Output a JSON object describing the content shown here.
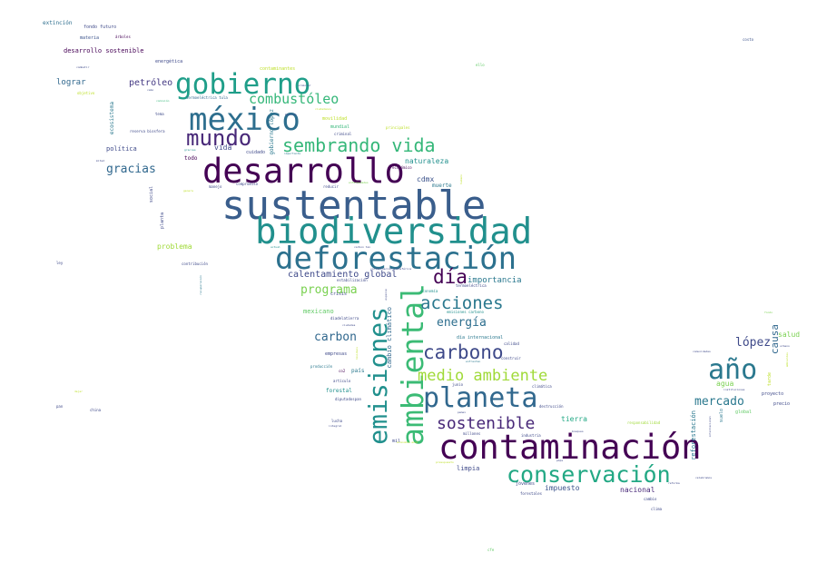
{
  "words": [
    {
      "text": "sustentable",
      "color": "#3a5e8c"
    },
    {
      "text": "biodiversidad",
      "color": "#21908d"
    },
    {
      "text": "contaminación",
      "color": "#440154"
    },
    {
      "text": "deforestación",
      "color": "#2c718e"
    },
    {
      "text": "desarrollo",
      "color": "#440154"
    },
    {
      "text": "ambiental",
      "color": "#3bbb75"
    },
    {
      "text": "méxico",
      "color": "#2d6e8e"
    },
    {
      "text": "emisiones",
      "color": "#21908d"
    },
    {
      "text": "planeta",
      "color": "#31688e"
    },
    {
      "text": "gobierno",
      "color": "#1f9e89"
    },
    {
      "text": "conservación",
      "color": "#22a884"
    },
    {
      "text": "año",
      "color": "#2a788e"
    },
    {
      "text": "mundo",
      "color": "#482878"
    },
    {
      "text": "sembrando vida",
      "color": "#35b779"
    },
    {
      "text": "carbono",
      "color": "#3e4989"
    },
    {
      "text": "acciones",
      "color": "#2a788e"
    },
    {
      "text": "medio ambiente",
      "color": "#a0da39"
    },
    {
      "text": "sostenible",
      "color": "#482878"
    },
    {
      "text": "día",
      "color": "#440154"
    },
    {
      "text": "combustóleo",
      "color": "#35b779"
    },
    {
      "text": "programa",
      "color": "#7ad151"
    },
    {
      "text": "mercado",
      "color": "#2a788e"
    },
    {
      "text": "gracias",
      "color": "#31688e"
    },
    {
      "text": "energía",
      "color": "#2d6e8e"
    },
    {
      "text": "carbon",
      "color": "#31688e"
    },
    {
      "text": "lópez",
      "color": "#3e4989"
    },
    {
      "text": "calentamiento global",
      "color": "#3e4989"
    },
    {
      "text": "causa",
      "color": "#31688e"
    },
    {
      "text": "petróleo",
      "color": "#443983"
    },
    {
      "text": "lograr",
      "color": "#31688e"
    },
    {
      "text": "vida",
      "color": "#3e4989"
    },
    {
      "text": "importancia",
      "color": "#2a788e"
    },
    {
      "text": "tierra",
      "color": "#22a884"
    },
    {
      "text": "nacional",
      "color": "#482878"
    },
    {
      "text": "impuesto",
      "color": "#3b528b"
    },
    {
      "text": "naturaleza",
      "color": "#21908d"
    },
    {
      "text": "cdmx",
      "color": "#3b528b"
    },
    {
      "text": "agua",
      "color": "#7ad151"
    },
    {
      "text": "salud",
      "color": "#7ad151"
    },
    {
      "text": "limpia",
      "color": "#3e4989"
    },
    {
      "text": "mexicano",
      "color": "#5ec962"
    },
    {
      "text": "problema",
      "color": "#a0da39"
    },
    {
      "text": "política",
      "color": "#3e4989"
    },
    {
      "text": "reforestación",
      "color": "#2a788e"
    },
    {
      "text": "desarrollo sostenible",
      "color": "#440154"
    },
    {
      "text": "emisiones carbono",
      "color": "#21908d"
    },
    {
      "text": "ecosistema",
      "color": "#2a788e"
    },
    {
      "text": "gobierno lópez",
      "color": "#2a788e"
    },
    {
      "text": "cambio climático",
      "color": "#31688e"
    },
    {
      "text": "extinción",
      "color": "#2d6e8e"
    },
    {
      "text": "fondo futuro",
      "color": "#3e4989"
    },
    {
      "text": "árboles",
      "color": "#440154"
    },
    {
      "text": "materia",
      "color": "#3b528b"
    },
    {
      "text": "energética",
      "color": "#3e4989"
    },
    {
      "text": "contaminantes",
      "color": "#bddf26"
    },
    {
      "text": "objetivo",
      "color": "#bddf26"
    },
    {
      "text": "termoeléctrica tula",
      "color": "#31688e"
    },
    {
      "text": "promover",
      "color": "#3e4989"
    },
    {
      "text": "cabo",
      "color": "#3e4989"
    },
    {
      "text": "comisión",
      "color": "#35b779"
    },
    {
      "text": "movilidad",
      "color": "#bddf26"
    },
    {
      "text": "mundial",
      "color": "#35b779"
    },
    {
      "text": "criminal",
      "color": "#3e4989"
    },
    {
      "text": "principales",
      "color": "#bddf26"
    },
    {
      "text": "ello",
      "color": "#5ec962"
    },
    {
      "text": "costo",
      "color": "#3b528b"
    },
    {
      "text": "cuidado",
      "color": "#3e4989"
    },
    {
      "text": "todo",
      "color": "#440154"
    },
    {
      "text": "económico",
      "color": "#440154"
    },
    {
      "text": "reducir",
      "color": "#3e4989"
    },
    {
      "text": "compromiso",
      "color": "#3e4989"
    },
    {
      "text": "manejo",
      "color": "#3e4989"
    },
    {
      "text": "muerte",
      "color": "#2a788e"
    },
    {
      "text": "enfermedades",
      "color": "#7ad151"
    },
    {
      "text": "social",
      "color": "#3e4989"
    },
    {
      "text": "planta",
      "color": "#3e4989"
    },
    {
      "text": "ley",
      "color": "#3e4989"
    },
    {
      "text": "contribución",
      "color": "#3e4989"
    },
    {
      "text": "recuperación",
      "color": "#2a788e"
    },
    {
      "text": "crisis",
      "color": "#3e4989"
    },
    {
      "text": "especie",
      "color": "#3e4989"
    },
    {
      "text": "economía",
      "color": "#21908d"
    },
    {
      "text": "termoeléctrica",
      "color": "#3e4989"
    },
    {
      "text": "estabilización",
      "color": "#3e4989"
    },
    {
      "text": "contaminación atmosférica",
      "color": "#3e4989"
    },
    {
      "text": "carbon tax",
      "color": "#3e4989"
    },
    {
      "text": "actual",
      "color": "#21908d"
    },
    {
      "text": "diadelatierra",
      "color": "#3e4989"
    },
    {
      "text": "ciudades",
      "color": "#3e4989"
    },
    {
      "text": "día internacional",
      "color": "#2a788e"
    },
    {
      "text": "calidad",
      "color": "#3e4989"
    },
    {
      "text": "construir",
      "color": "#3e4989"
    },
    {
      "text": "empresas",
      "color": "#3e4989"
    },
    {
      "text": "producción",
      "color": "#2a788e"
    },
    {
      "text": "co2",
      "color": "#440154"
    },
    {
      "text": "país",
      "color": "#2a788e"
    },
    {
      "text": "artículo",
      "color": "#3e4989"
    },
    {
      "text": "forestal",
      "color": "#21908d"
    },
    {
      "text": "diputadospan",
      "color": "#3e4989"
    },
    {
      "text": "junio",
      "color": "#3e4989"
    },
    {
      "text": "enfrentan",
      "color": "#2a788e"
    },
    {
      "text": "climática",
      "color": "#3e4989"
    },
    {
      "text": "destrucción",
      "color": "#3e4989"
    },
    {
      "text": "responsabilidad",
      "color": "#a0da39"
    },
    {
      "text": "lucha",
      "color": "#3e4989"
    },
    {
      "text": "mil",
      "color": "#3e4989"
    },
    {
      "text": "millones",
      "color": "#3e4989"
    },
    {
      "text": "industria",
      "color": "#3e4989"
    },
    {
      "text": "bosques",
      "color": "#3e4989"
    },
    {
      "text": "jóvenes",
      "color": "#3e4989"
    },
    {
      "text": "forestales",
      "color": "#3e4989"
    },
    {
      "text": "cambio",
      "color": "#3e4989"
    },
    {
      "text": "clima",
      "color": "#3e4989"
    },
    {
      "text": "celebramos",
      "color": "#3e4989"
    },
    {
      "text": "reforma",
      "color": "#3e4989"
    },
    {
      "text": "proyecto",
      "color": "#3e4989"
    },
    {
      "text": "precio",
      "color": "#3e4989"
    },
    {
      "text": "global",
      "color": "#5ec962"
    },
    {
      "text": "suelo",
      "color": "#2a788e"
    },
    {
      "text": "internacional",
      "color": "#3e4989"
    },
    {
      "text": "instituciones",
      "color": "#3e4989"
    },
    {
      "text": "pemex",
      "color": "#3e4989"
    },
    {
      "text": "urbano",
      "color": "#3e4989"
    },
    {
      "text": "comunidades",
      "color": "#3e4989"
    },
    {
      "text": "fondo",
      "color": "#7ad151"
    },
    {
      "text": "cfe",
      "color": "#5ec962"
    },
    {
      "text": "pan",
      "color": "#3e4989"
    },
    {
      "text": "china",
      "color": "#3e4989"
    },
    {
      "text": "dejar",
      "color": "#bddf26"
    },
    {
      "text": "reserva biosfera",
      "color": "#3e4989"
    },
    {
      "text": "tema",
      "color": "#3e4989"
    },
    {
      "text": "gracias",
      "color": "#21908d"
    },
    {
      "text": "combatir",
      "color": "#3e4989"
    },
    {
      "text": "mitad",
      "color": "#3e4989"
    },
    {
      "text": "ciudadanos",
      "color": "#bddf26"
    },
    {
      "text": "mayores",
      "color": "#3e4989"
    },
    {
      "text": "importante",
      "color": "#2a788e"
    },
    {
      "text": "residuos",
      "color": "#bddf26"
    },
    {
      "text": "integral",
      "color": "#3e4989"
    },
    {
      "text": "humano",
      "color": "#bddf26"
    },
    {
      "text": "presupuesto",
      "color": "#bddf26"
    },
    {
      "text": "genera",
      "color": "#bddf26"
    },
    {
      "text": "tarde",
      "color": "#bddf26"
    },
    {
      "text": "pmps",
      "color": "#3e4989"
    },
    {
      "text": "economía azul",
      "color": "#bddf26"
    },
    {
      "text": "ambientes",
      "color": "#bddf26"
    },
    {
      "text": "urgente",
      "color": "#3e4989"
    }
  ]
}
